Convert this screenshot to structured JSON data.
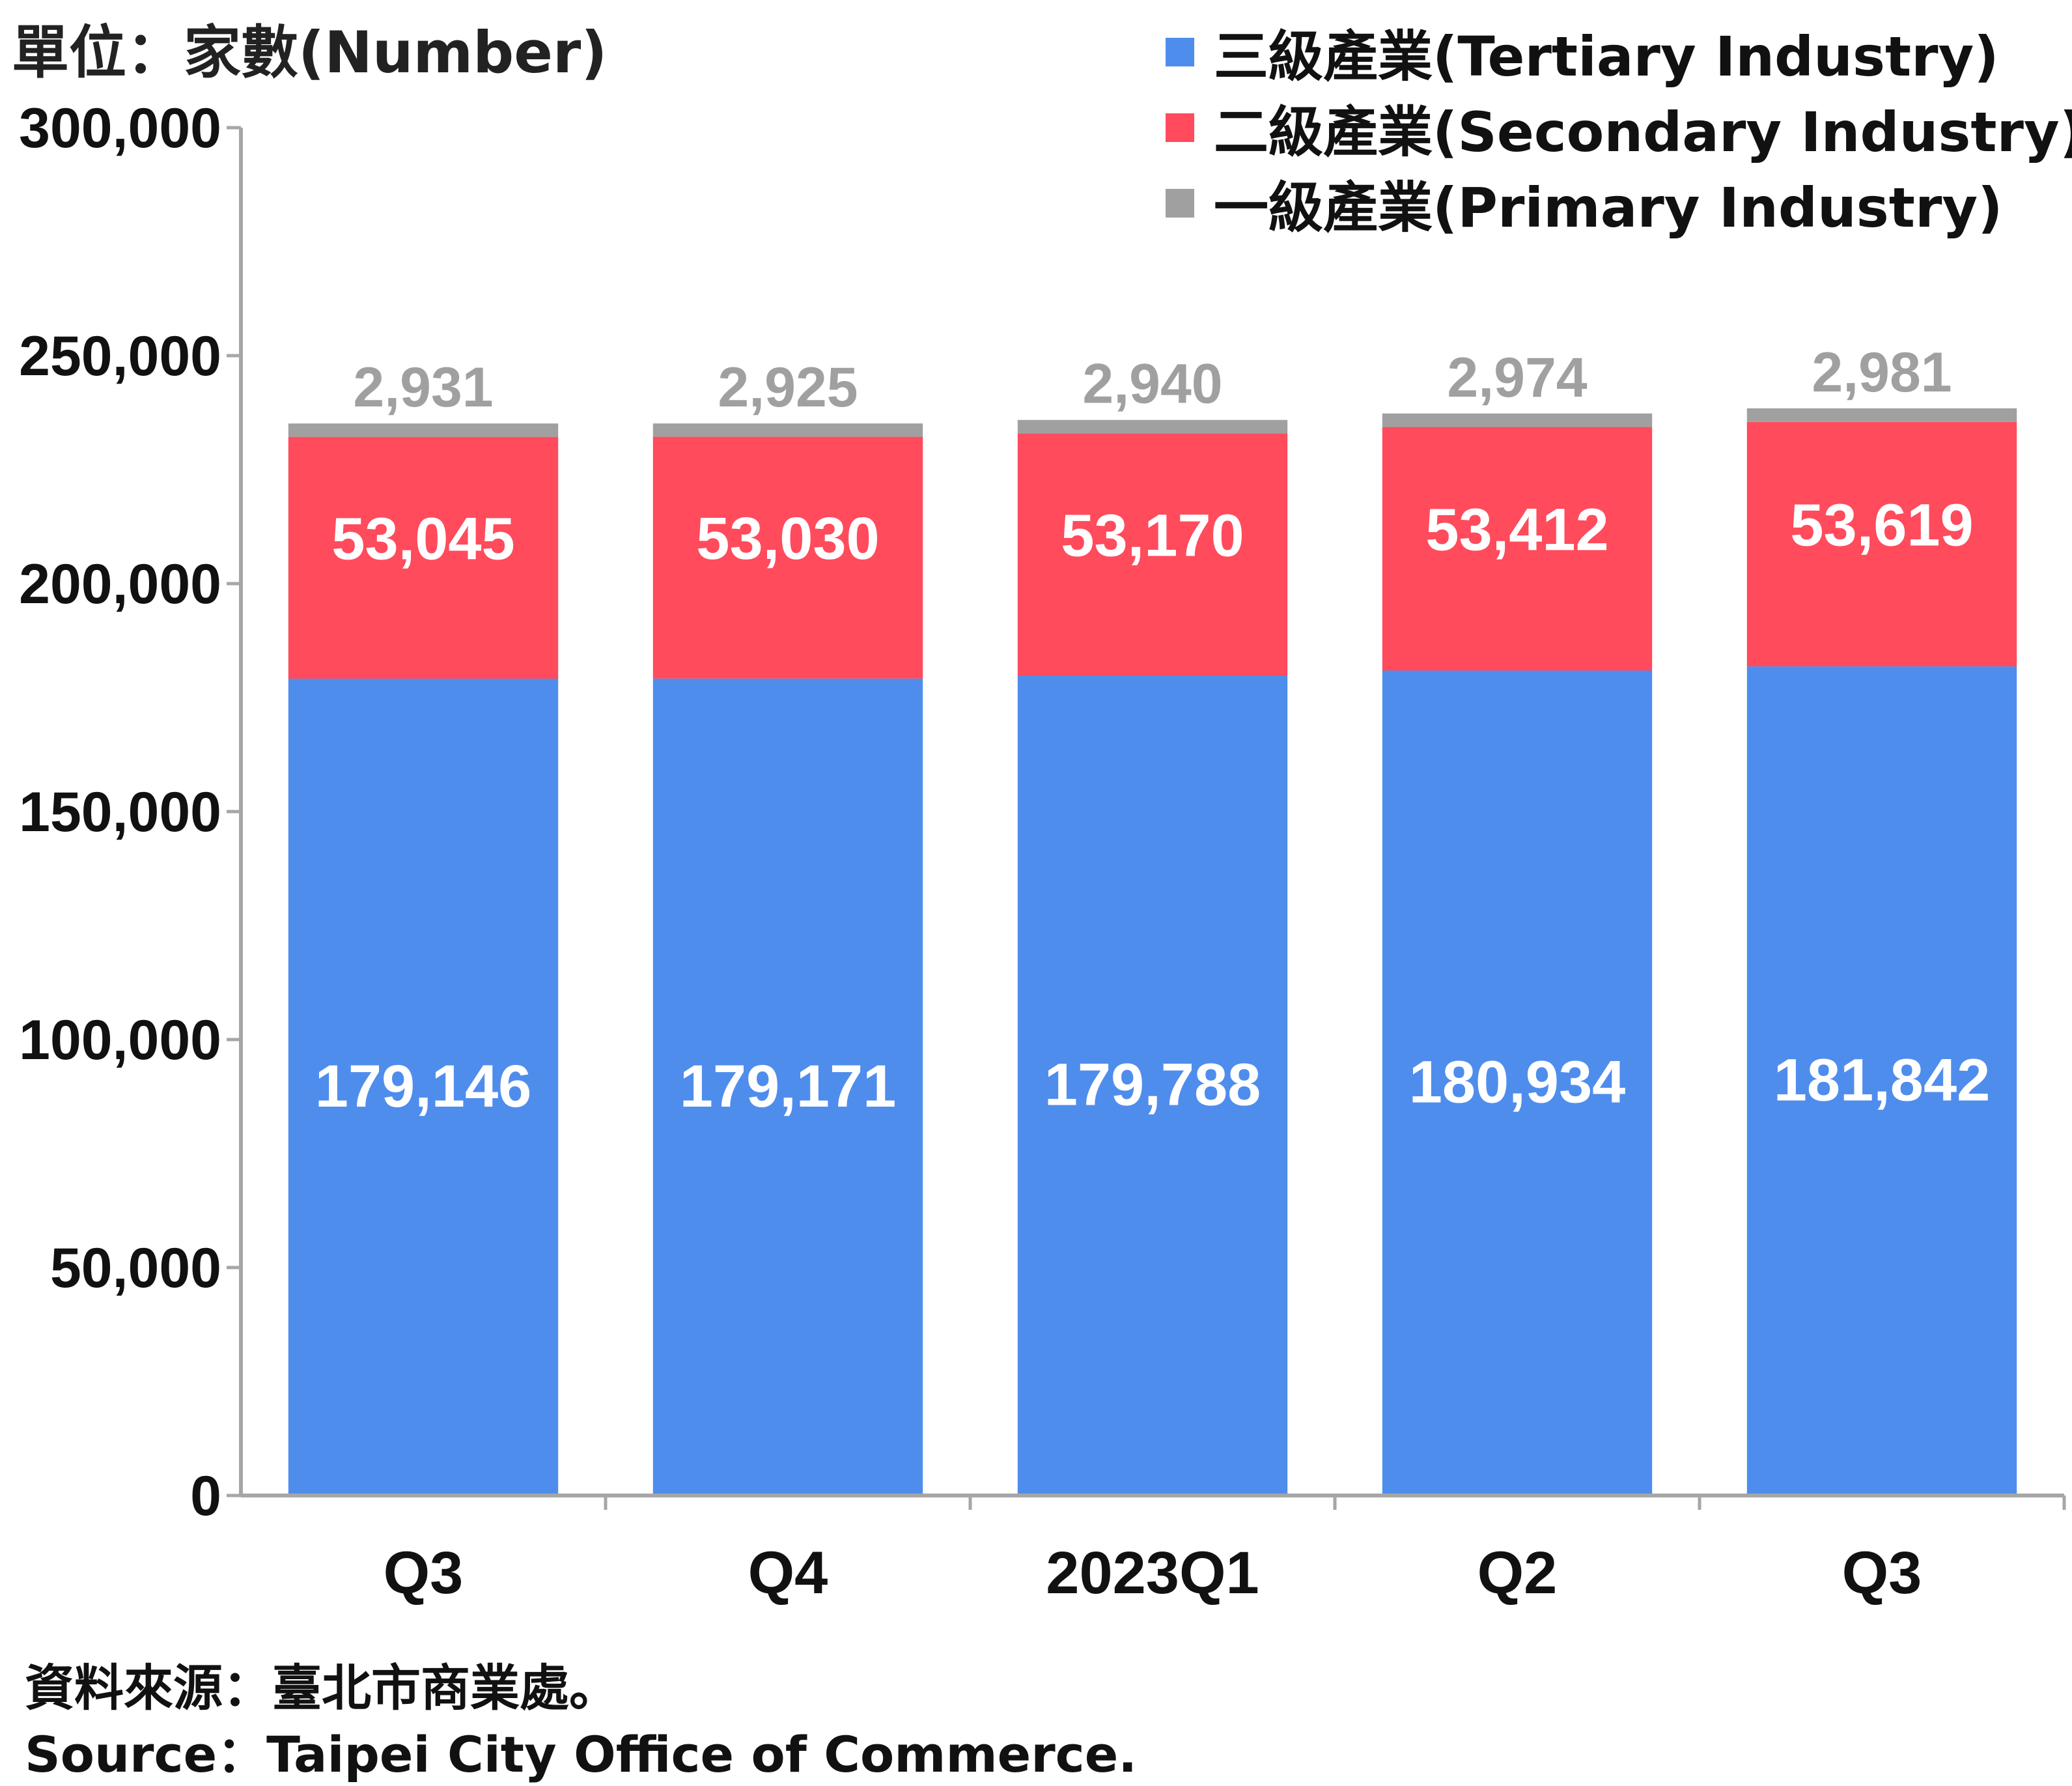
{
  "unit_label": "單位：家數(Number)",
  "legend": [
    {
      "label": "三級產業(Tertiary Industry)",
      "color": "#4f8ded"
    },
    {
      "label": "二級產業(Secondary Industry)",
      "color": "#ff4b5c"
    },
    {
      "label": "一級產業(Primary Industry)",
      "color": "#a0a0a0"
    }
  ],
  "source_zh": "資料來源：臺北市商業處。",
  "source_en": "Source：Taipei City Office of Commerce.",
  "chart_data": {
    "type": "bar",
    "stacked": true,
    "categories": [
      "Q3",
      "Q4",
      "2023Q1",
      "Q2",
      "Q3"
    ],
    "series": [
      {
        "name": "三級產業(Tertiary Industry)",
        "color": "#4f8ded",
        "label_color": "#ffffff",
        "values": [
          179146,
          179171,
          179788,
          180934,
          181842
        ],
        "labels": [
          "179,146",
          "179,171",
          "179,788",
          "180,934",
          "181,842"
        ]
      },
      {
        "name": "二級產業(Secondary Industry)",
        "color": "#ff4b5c",
        "label_color": "#ffffff",
        "values": [
          53045,
          53030,
          53170,
          53412,
          53619
        ],
        "labels": [
          "53,045",
          "53,030",
          "53,170",
          "53,412",
          "53,619"
        ]
      },
      {
        "name": "一級產業(Primary Industry)",
        "color": "#a0a0a0",
        "label_color": "#a0a0a0",
        "values": [
          2931,
          2925,
          2940,
          2974,
          2981
        ],
        "labels": [
          "2,931",
          "2,925",
          "2,940",
          "2,974",
          "2,981"
        ]
      }
    ],
    "ylim": [
      0,
      300000
    ],
    "yticks": [
      0,
      50000,
      100000,
      150000,
      200000,
      250000,
      300000
    ],
    "ytick_labels": [
      "0",
      "50,000",
      "100,000",
      "150,000",
      "200,000",
      "250,000",
      "300,000"
    ],
    "grid": false,
    "legend_position": "top-right"
  }
}
